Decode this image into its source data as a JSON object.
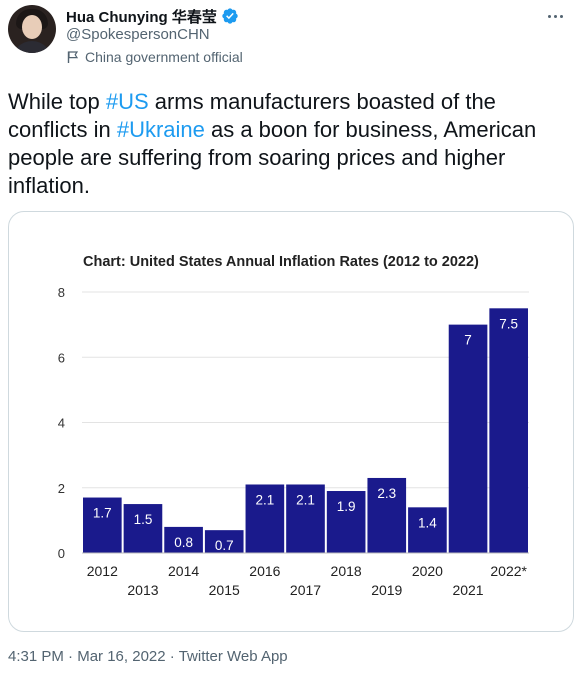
{
  "author": {
    "display_name": "Hua Chunying 华春莹",
    "handle": "@SpokespersonCHN",
    "label": "China government official"
  },
  "tweet": {
    "text_parts": [
      {
        "text": "While top ",
        "tag": false
      },
      {
        "text": "#US",
        "tag": true
      },
      {
        "text": " arms manufacturers boasted of the conflicts in ",
        "tag": false
      },
      {
        "text": "#Ukraine",
        "tag": true
      },
      {
        "text": " as a boon for business, American people are suffering from soaring prices and higher inflation.",
        "tag": false
      }
    ]
  },
  "meta": {
    "time": "4:31 PM",
    "separator": "·",
    "date": "Mar 16, 2022",
    "source": "Twitter Web App"
  },
  "chart_data": {
    "type": "bar",
    "title": "Chart: United States Annual Inflation Rates (2012 to 2022)",
    "categories": [
      "2012",
      "2013",
      "2014",
      "2015",
      "2016",
      "2017",
      "2018",
      "2019",
      "2020",
      "2021",
      "2022*"
    ],
    "values": [
      1.7,
      1.5,
      0.8,
      0.7,
      2.1,
      2.1,
      1.9,
      2.3,
      1.4,
      7,
      7.5
    ],
    "value_labels": [
      "1.7",
      "1.5",
      "0.8",
      "0.7",
      "2.1",
      "2.1",
      "1.9",
      "2.3",
      "1.4",
      "7",
      "7.5"
    ],
    "ylim": [
      0,
      8
    ],
    "yticks": [
      0,
      2,
      4,
      6,
      8
    ],
    "grid": true,
    "bar_color": "#1a1a8c",
    "xlabel": "",
    "ylabel": ""
  },
  "colors": {
    "accent": "#1d9bf0",
    "verified": "#1d9bf0",
    "secondary_text": "#536471"
  },
  "icons": {
    "verified": "verified-badge-icon",
    "label": "flag-icon",
    "more": "more-icon"
  }
}
